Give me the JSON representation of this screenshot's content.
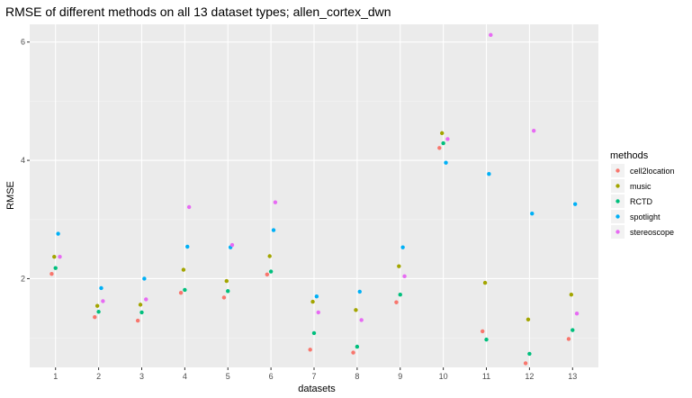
{
  "chart_data": {
    "type": "scatter",
    "title": "RMSE of different methods on all 13 dataset types; allen_cortex_dwn",
    "xlabel": "datasets",
    "ylabel": "RMSE",
    "categories": [
      "1",
      "2",
      "3",
      "4",
      "5",
      "6",
      "7",
      "8",
      "9",
      "10",
      "11",
      "12",
      "13"
    ],
    "y_ticks": [
      "2",
      "4",
      "6"
    ],
    "ylim": [
      0.5,
      6.3
    ],
    "grid": true,
    "legend": {
      "title": "methods",
      "position": "right"
    },
    "series": [
      {
        "name": "cell2location",
        "color": "#F8766D",
        "values": [
          2.08,
          1.35,
          1.29,
          1.76,
          1.68,
          2.07,
          0.8,
          0.75,
          1.6,
          4.21,
          1.11,
          0.57,
          0.98
        ]
      },
      {
        "name": "music",
        "color": "#A3A500",
        "values": [
          2.37,
          1.54,
          1.56,
          2.15,
          1.96,
          2.38,
          1.61,
          1.47,
          2.21,
          4.46,
          1.93,
          1.31,
          1.73
        ]
      },
      {
        "name": "RCTD",
        "color": "#00BF7D",
        "values": [
          2.18,
          1.44,
          1.43,
          1.81,
          1.79,
          2.12,
          1.08,
          0.85,
          1.73,
          4.29,
          0.97,
          0.73,
          1.13
        ]
      },
      {
        "name": "spotlight",
        "color": "#00B0F6",
        "values": [
          2.76,
          1.84,
          2.0,
          2.54,
          2.53,
          2.82,
          1.7,
          1.78,
          2.53,
          3.96,
          3.77,
          3.1,
          3.26
        ]
      },
      {
        "name": "stereoscope",
        "color": "#E76BF3",
        "values": [
          2.37,
          1.62,
          1.65,
          3.21,
          2.57,
          3.29,
          1.43,
          1.3,
          2.04,
          4.36,
          6.12,
          4.5,
          1.41
        ]
      }
    ]
  }
}
